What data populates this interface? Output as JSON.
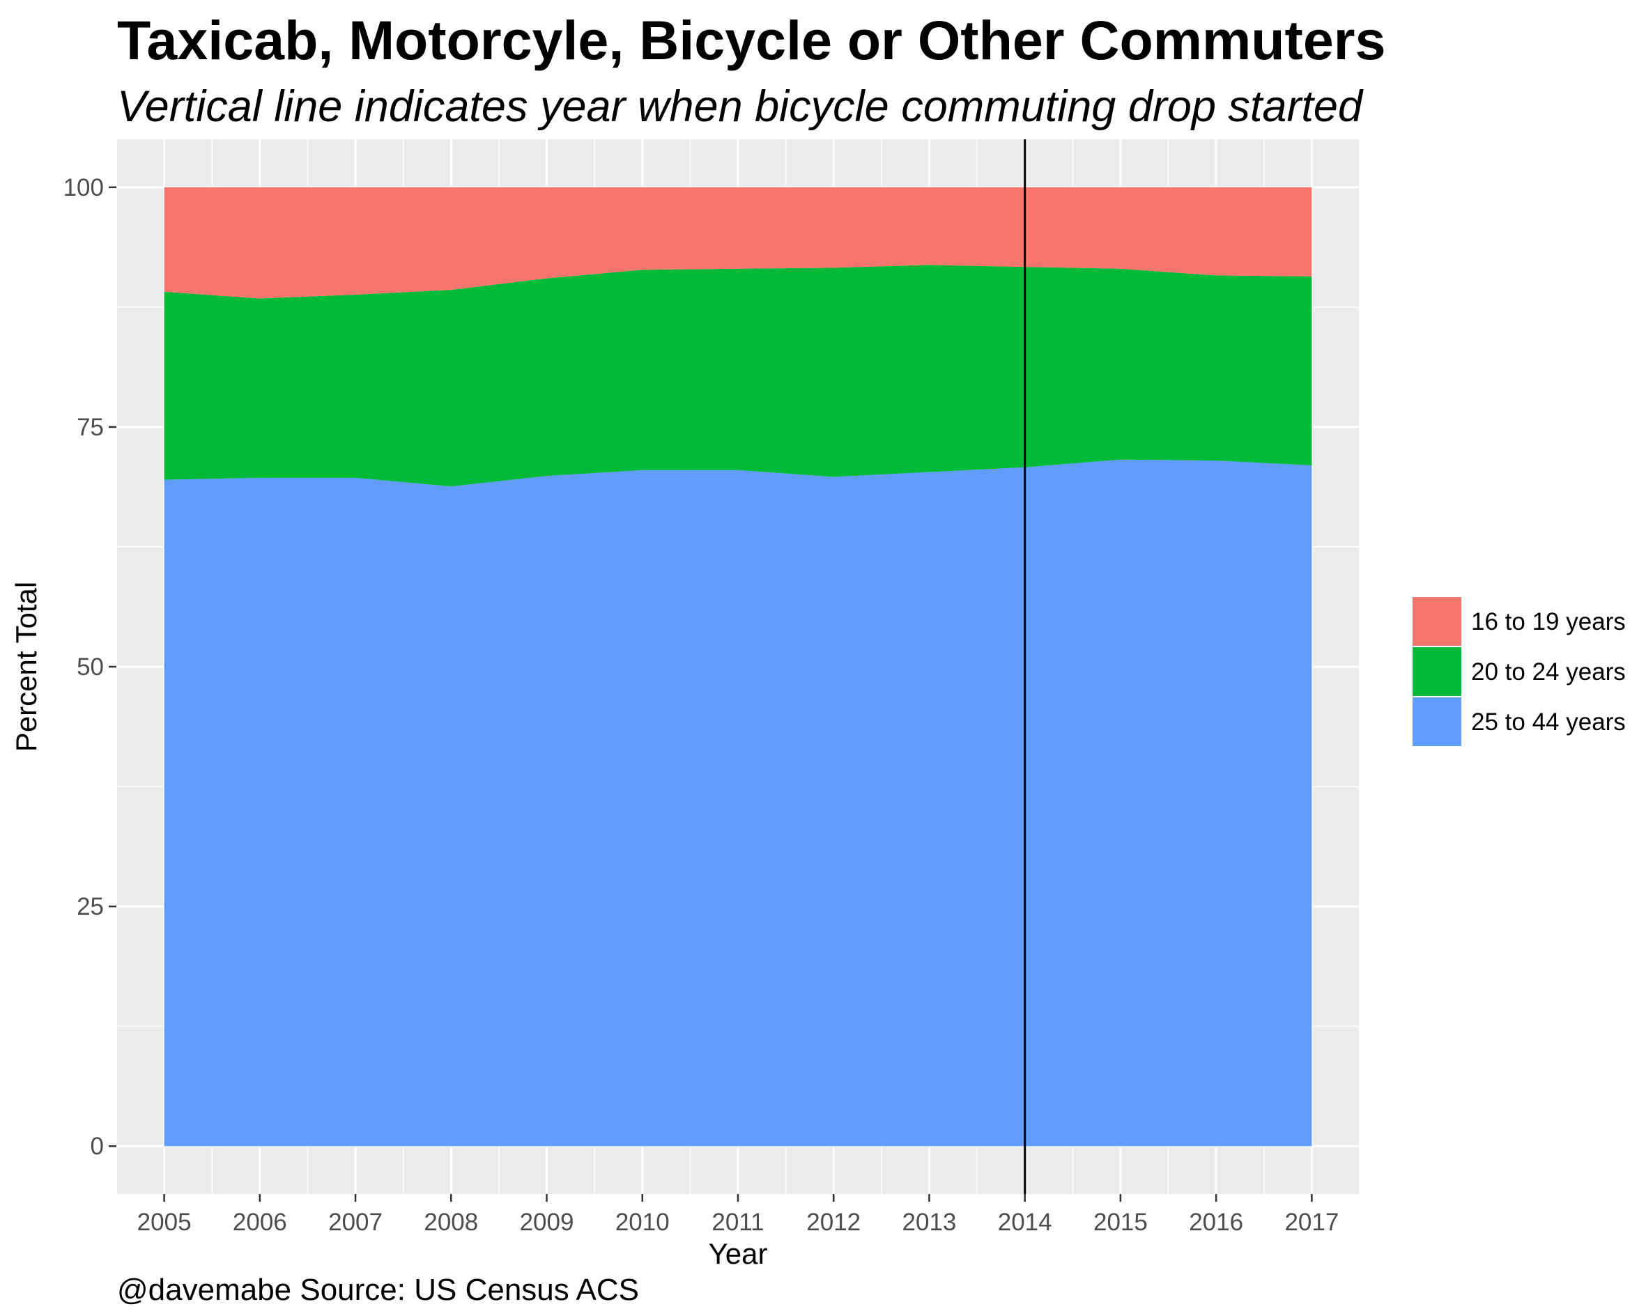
{
  "chart_data": {
    "type": "area",
    "stacked": true,
    "title": "Taxicab, Motorcyle, Bicycle or Other Commuters",
    "subtitle": "Vertical line indicates year when bicycle commuting drop started",
    "xlabel": "Year",
    "ylabel": "Percent Total",
    "caption": "@davemabe Source: US Census ACS",
    "x": [
      2005,
      2006,
      2007,
      2008,
      2009,
      2010,
      2011,
      2012,
      2013,
      2014,
      2015,
      2016,
      2017
    ],
    "x_tick_labels": [
      "2005",
      "2006",
      "2007",
      "2008",
      "2009",
      "2010",
      "2011",
      "2012",
      "2013",
      "2014",
      "2015",
      "2016",
      "2017"
    ],
    "y_tick_labels": [
      "0",
      "25",
      "50",
      "75",
      "100"
    ],
    "y_ticks": [
      0,
      25,
      50,
      75,
      100
    ],
    "xlim": [
      2004.5,
      2017.5
    ],
    "ylim": [
      -5,
      105
    ],
    "grid": true,
    "background": "#ebebeb",
    "legend_position": "right",
    "vline": {
      "x": 2014,
      "color": "#000000"
    },
    "series": [
      {
        "name": "25 to 44 years",
        "color": "#619cff",
        "values": [
          69.5,
          69.7,
          69.7,
          68.8,
          69.9,
          70.5,
          70.5,
          69.8,
          70.3,
          70.8,
          71.6,
          71.5,
          71.0
        ]
      },
      {
        "name": "20 to 24 years",
        "color": "#00ba38",
        "values": [
          19.6,
          18.7,
          19.1,
          20.5,
          20.6,
          20.9,
          21.0,
          21.8,
          21.6,
          20.9,
          19.9,
          19.3,
          19.7
        ]
      },
      {
        "name": "16 to 19 years",
        "color": "#f8766d",
        "values": [
          10.9,
          11.6,
          11.2,
          10.7,
          9.5,
          8.6,
          8.5,
          8.4,
          8.1,
          8.3,
          8.5,
          9.2,
          9.3
        ]
      }
    ],
    "legend_order": [
      "16 to 19 years",
      "20 to 24 years",
      "25 to 44 years"
    ]
  }
}
